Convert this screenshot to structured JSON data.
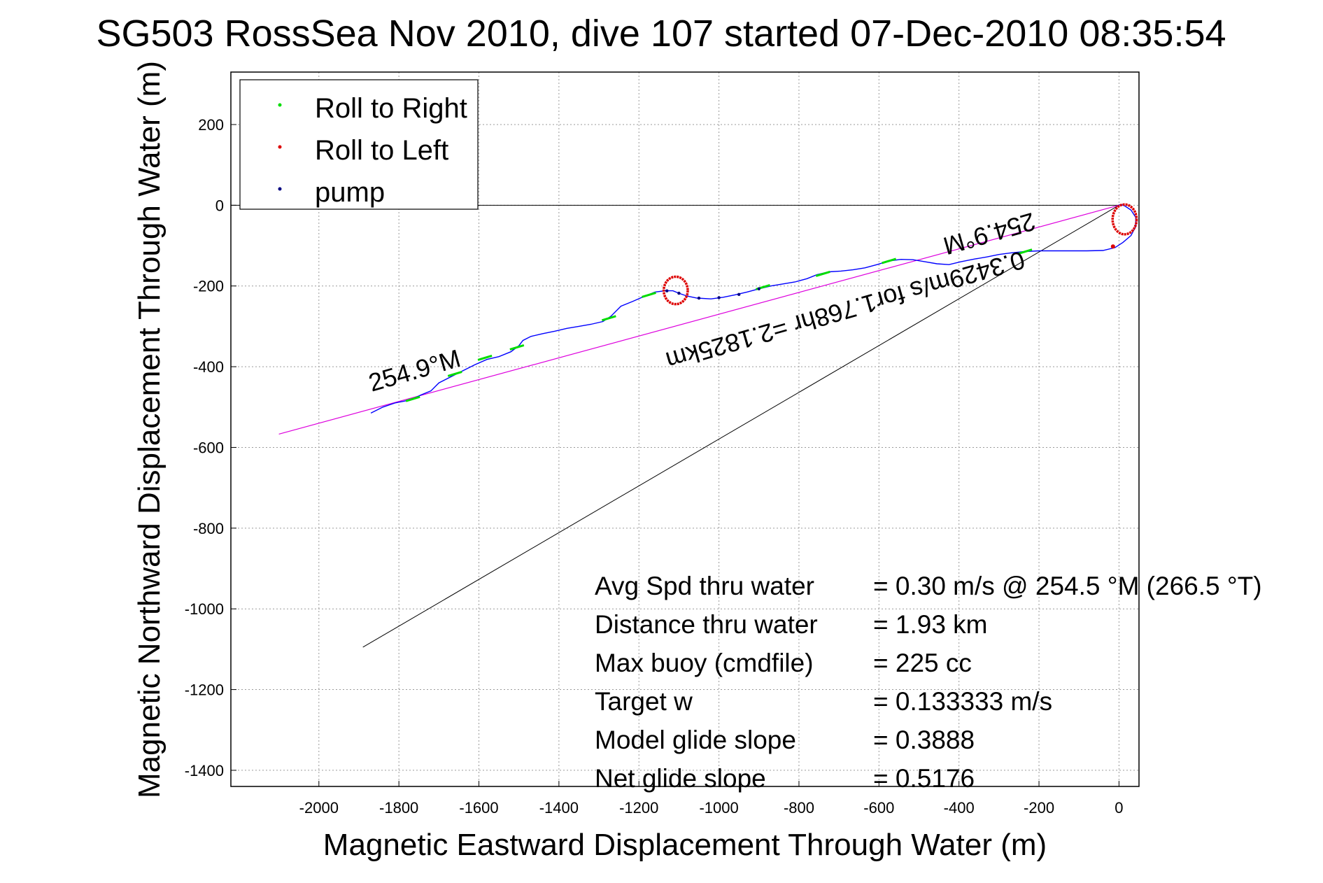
{
  "chart_data": {
    "type": "line",
    "title": "SG503 RossSea Nov 2010, dive 107 started 07-Dec-2010 08:35:54",
    "xlabel": "Magnetic Eastward Displacement Through Water (m)",
    "ylabel": "Magnetic Northward Displacement Through Water (m)",
    "xlim": [
      -2220,
      50
    ],
    "ylim": [
      -1440,
      330
    ],
    "xticks": [
      -2000,
      -1800,
      -1600,
      -1400,
      -1200,
      -1000,
      -800,
      -600,
      -400,
      -200,
      0
    ],
    "yticks": [
      200,
      0,
      -200,
      -400,
      -600,
      -800,
      -1000,
      -1200,
      -1400
    ],
    "grid": true,
    "legend_position": "top-left",
    "legend": [
      {
        "label": "Roll to Right",
        "color": "#00dd00"
      },
      {
        "label": "Roll to Left",
        "color": "#dd0000"
      },
      {
        "label": "pump",
        "color": "#000080"
      }
    ],
    "track_color": "#0000ff",
    "track": [
      [
        -1870,
        -515
      ],
      [
        -1840,
        -500
      ],
      [
        -1810,
        -490
      ],
      [
        -1770,
        -482
      ],
      [
        -1745,
        -470
      ],
      [
        -1720,
        -460
      ],
      [
        -1700,
        -440
      ],
      [
        -1670,
        -425
      ],
      [
        -1640,
        -410
      ],
      [
        -1610,
        -395
      ],
      [
        -1580,
        -382
      ],
      [
        -1550,
        -375
      ],
      [
        -1520,
        -363
      ],
      [
        -1500,
        -348
      ],
      [
        -1490,
        -335
      ],
      [
        -1470,
        -325
      ],
      [
        -1440,
        -318
      ],
      [
        -1410,
        -312
      ],
      [
        -1380,
        -305
      ],
      [
        -1350,
        -300
      ],
      [
        -1320,
        -295
      ],
      [
        -1290,
        -288
      ],
      [
        -1270,
        -275
      ],
      [
        -1245,
        -250
      ],
      [
        -1215,
        -238
      ],
      [
        -1185,
        -225
      ],
      [
        -1160,
        -215
      ],
      [
        -1135,
        -212
      ],
      [
        -1115,
        -212
      ],
      [
        -1100,
        -218
      ],
      [
        -1080,
        -225
      ],
      [
        -1055,
        -230
      ],
      [
        -1020,
        -232
      ],
      [
        -990,
        -228
      ],
      [
        -960,
        -222
      ],
      [
        -930,
        -215
      ],
      [
        -900,
        -207
      ],
      [
        -870,
        -200
      ],
      [
        -840,
        -195
      ],
      [
        -810,
        -190
      ],
      [
        -780,
        -182
      ],
      [
        -755,
        -172
      ],
      [
        -725,
        -165
      ],
      [
        -695,
        -163
      ],
      [
        -665,
        -160
      ],
      [
        -635,
        -155
      ],
      [
        -605,
        -147
      ],
      [
        -575,
        -138
      ],
      [
        -545,
        -134
      ],
      [
        -515,
        -135
      ],
      [
        -485,
        -140
      ],
      [
        -455,
        -145
      ],
      [
        -425,
        -147
      ],
      [
        -395,
        -140
      ],
      [
        -360,
        -133
      ],
      [
        -330,
        -128
      ],
      [
        -300,
        -122
      ],
      [
        -270,
        -118
      ],
      [
        -240,
        -115
      ],
      [
        -200,
        -113
      ],
      [
        -160,
        -113
      ],
      [
        -120,
        -113
      ],
      [
        -80,
        -113
      ],
      [
        -40,
        -112
      ],
      [
        -10,
        -105
      ],
      [
        10,
        -92
      ],
      [
        30,
        -75
      ],
      [
        42,
        -52
      ],
      [
        42,
        -30
      ],
      [
        30,
        -12
      ],
      [
        15,
        -2
      ],
      [
        5,
        2
      ],
      [
        -2,
        0
      ]
    ],
    "loops": [
      {
        "center": [
          -1108,
          -211
        ],
        "radii": [
          30,
          34
        ],
        "color": "#dd0000"
      },
      {
        "center": [
          14,
          -35
        ],
        "radii": [
          30,
          37
        ],
        "color": "#dd0000"
      }
    ],
    "roll_right_points": [
      [
        -1765,
        -480
      ],
      [
        -1660,
        -418
      ],
      [
        -1585,
        -378
      ],
      [
        -1505,
        -352
      ],
      [
        -1275,
        -280
      ],
      [
        -1175,
        -222
      ],
      [
        -890,
        -203
      ],
      [
        -740,
        -170
      ],
      [
        -575,
        -138
      ],
      [
        -235,
        -115
      ]
    ],
    "roll_left_points": [
      [
        -15,
        -102
      ]
    ],
    "pump_points": [
      [
        -1130,
        -212
      ],
      [
        -1100,
        -218
      ],
      [
        -1050,
        -230
      ],
      [
        -1000,
        -229
      ],
      [
        -950,
        -221
      ],
      [
        -900,
        -207
      ]
    ],
    "heading_line": {
      "color": "#dd00dd",
      "from": [
        0,
        0
      ],
      "to": [
        -2100,
        -567
      ]
    },
    "current_line": {
      "color": "#000000",
      "from": [
        0,
        0
      ],
      "to": [
        -1890,
        -1095
      ]
    },
    "zero_line": {
      "color": "#000000",
      "from": [
        -2220,
        0
      ],
      "to": [
        0,
        0
      ]
    },
    "annotations": [
      {
        "text": "254.9°M",
        "x": -1755,
        "y": -430
      },
      {
        "text": "254.9°M",
        "x": -330,
        "y": -50
      },
      {
        "text": "0.3429m/s for1.768hr =2.1825km",
        "x": -690,
        "y": -240
      }
    ],
    "stats": [
      {
        "label": "Avg Spd thru water",
        "value": "=  0.30 m/s @ 254.5 °M (266.5 °T)"
      },
      {
        "label": "Distance thru water",
        "value": "=  1.93 km"
      },
      {
        "label": "Max buoy (cmdfile)",
        "value": "= 225 cc"
      },
      {
        "label": "Target w",
        "value": "= 0.133333 m/s"
      },
      {
        "label": "Model glide slope",
        "value": "= 0.3888"
      },
      {
        "label": "Net glide slope",
        "value": "= 0.5176"
      }
    ]
  }
}
